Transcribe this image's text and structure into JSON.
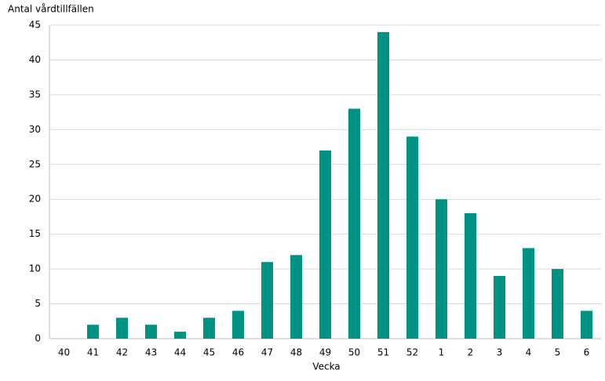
{
  "chart_data": {
    "type": "bar",
    "y_label": "Antal vårdtillfällen",
    "x_label": "Vecka",
    "categories": [
      "40",
      "41",
      "42",
      "43",
      "44",
      "45",
      "46",
      "47",
      "48",
      "49",
      "50",
      "51",
      "52",
      "1",
      "2",
      "3",
      "4",
      "5",
      "6"
    ],
    "values": [
      0,
      2,
      3,
      2,
      1,
      3,
      4,
      11,
      12,
      27,
      33,
      44,
      29,
      20,
      18,
      9,
      13,
      10,
      4
    ],
    "color": "#009384",
    "ylim": [
      0,
      45
    ],
    "yticks": [
      0,
      5,
      10,
      15,
      20,
      25,
      30,
      35,
      40,
      45
    ],
    "grid": true
  }
}
